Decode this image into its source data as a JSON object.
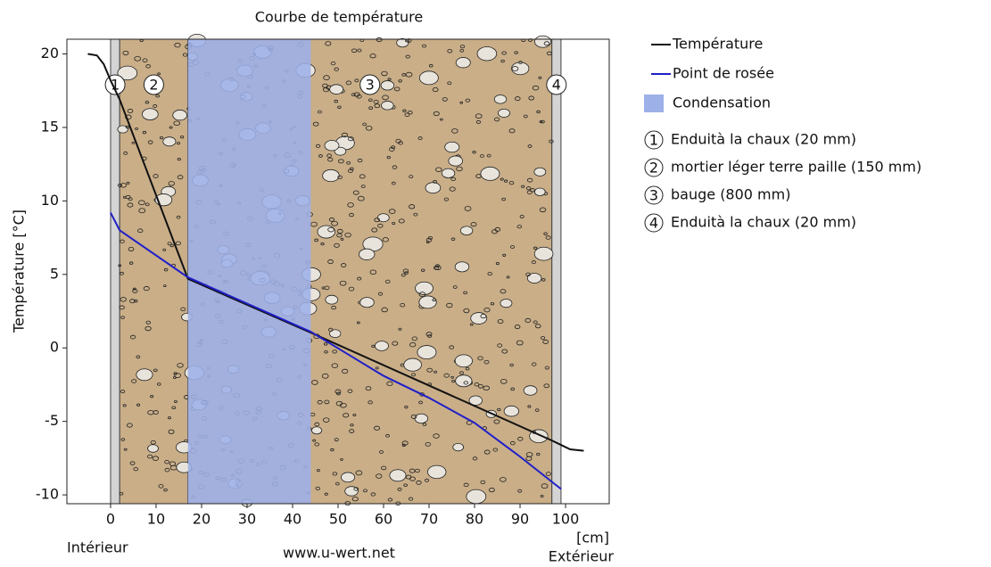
{
  "chart_data": {
    "type": "line",
    "title": "Courbe de température",
    "ylabel": "Température [°C]",
    "xunit": "[cm]",
    "left_note": "Intérieur",
    "right_note": "Extérieur",
    "source": "www.u-wert.net",
    "xlim": [
      -9.6,
      109.6
    ],
    "ylim": [
      -10.6,
      21
    ],
    "xticks": [
      0,
      10,
      20,
      30,
      40,
      50,
      60,
      70,
      80,
      90,
      100
    ],
    "yticks": [
      -10,
      -5,
      0,
      5,
      10,
      15,
      20
    ],
    "series": [
      {
        "name": "Température",
        "color": "#111111",
        "x": [
          -5,
          -3,
          -1.5,
          0,
          2,
          17,
          45,
          97,
          99,
          101,
          104
        ],
        "values": [
          20,
          19.9,
          19.3,
          18.2,
          16.9,
          4.7,
          0.9,
          -6.3,
          -6.6,
          -6.9,
          -7
        ]
      },
      {
        "name": "Point de rosée",
        "color": "#1f1fc8",
        "x": [
          0,
          2,
          17,
          44,
          60,
          70,
          80,
          90,
          99
        ],
        "values": [
          9.2,
          8.0,
          4.8,
          1.1,
          -1.9,
          -3.4,
          -5.1,
          -7.4,
          -9.6
        ]
      }
    ],
    "condensation": {
      "name": "Condensation",
      "color": "#9db0e8",
      "x": [
        17,
        44
      ]
    },
    "layers": [
      {
        "label": "1",
        "name": "Enduità la chaux (20 mm)",
        "color": "#d4d4d4",
        "x": [
          0,
          2
        ]
      },
      {
        "label": "2",
        "name": "mortier léger terre paille (150 mm)",
        "color": "#c9ae88",
        "x": [
          2,
          17
        ]
      },
      {
        "label": "3",
        "name": "bauge (800 mm)",
        "color": "#c9ae88",
        "x": [
          17,
          97
        ]
      },
      {
        "label": "4",
        "name": "Enduità la chaux (20 mm)",
        "color": "#d4d4d4",
        "x": [
          97,
          99
        ]
      }
    ]
  }
}
